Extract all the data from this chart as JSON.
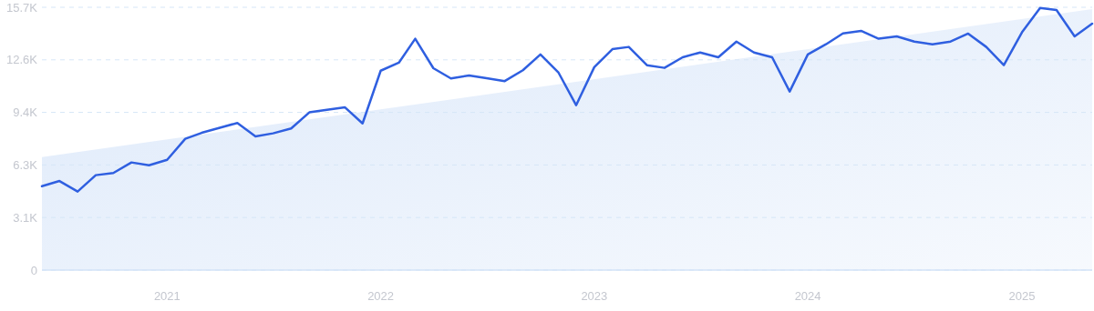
{
  "chart_data": {
    "type": "line",
    "x": [
      "2020-06",
      "2020-07",
      "2020-08",
      "2020-09",
      "2020-10",
      "2020-11",
      "2020-12",
      "2021-01",
      "2021-02",
      "2021-03",
      "2021-04",
      "2021-05",
      "2021-06",
      "2021-07",
      "2021-08",
      "2021-09",
      "2021-10",
      "2021-11",
      "2021-12",
      "2022-01",
      "2022-02",
      "2022-03",
      "2022-04",
      "2022-05",
      "2022-06",
      "2022-07",
      "2022-08",
      "2022-09",
      "2022-10",
      "2022-11",
      "2022-12",
      "2023-01",
      "2023-02",
      "2023-03",
      "2023-04",
      "2023-05",
      "2023-06",
      "2023-07",
      "2023-08",
      "2023-09",
      "2023-10",
      "2023-11",
      "2023-12",
      "2024-01",
      "2024-02",
      "2024-03",
      "2024-04",
      "2024-05",
      "2024-06",
      "2024-07",
      "2024-08",
      "2024-09",
      "2024-10",
      "2024-11",
      "2024-12",
      "2025-01",
      "2025-02",
      "2025-03",
      "2025-04",
      "2025-05"
    ],
    "series": [
      {
        "type": "area",
        "x": [
          "2020-06",
          "2025-05"
        ],
        "values": [
          6750,
          15590
        ],
        "color": "#dde9fa"
      },
      {
        "color": "#2f5fe0",
        "values": [
          5010,
          5320,
          4690,
          5670,
          5800,
          6430,
          6260,
          6590,
          7840,
          8200,
          8500,
          8790,
          7990,
          8170,
          8460,
          9420,
          9580,
          9720,
          8760,
          11910,
          12390,
          13820,
          12060,
          11450,
          11630,
          11460,
          11290,
          11940,
          12880,
          11790,
          9850,
          12120,
          13200,
          13330,
          12240,
          12080,
          12710,
          13000,
          12710,
          13650,
          13000,
          12710,
          10670,
          12880,
          13490,
          14140,
          14290,
          13820,
          13960,
          13650,
          13490,
          13650,
          14130,
          13330,
          12240,
          14200,
          15660,
          15540,
          13960,
          14720
        ]
      }
    ],
    "xlim": [
      "2020-06",
      "2025-05"
    ],
    "xticks": [
      {
        "value": "2021-01",
        "label": "2021"
      },
      {
        "value": "2022-01",
        "label": "2022"
      },
      {
        "value": "2023-01",
        "label": "2023"
      },
      {
        "value": "2024-01",
        "label": "2024"
      },
      {
        "value": "2025-01",
        "label": "2025"
      }
    ],
    "ylim": [
      0,
      15700
    ],
    "yticks": [
      0,
      {
        "value": 3140,
        "label": "3.1K"
      },
      {
        "value": 6280,
        "label": "6.3K"
      },
      {
        "value": 9420,
        "label": "9.4K"
      },
      {
        "value": 12560,
        "label": "12.6K"
      },
      {
        "value": 15700,
        "label": "15.7K"
      }
    ],
    "grid": "y",
    "line_style": "solid",
    "marker": "none"
  }
}
